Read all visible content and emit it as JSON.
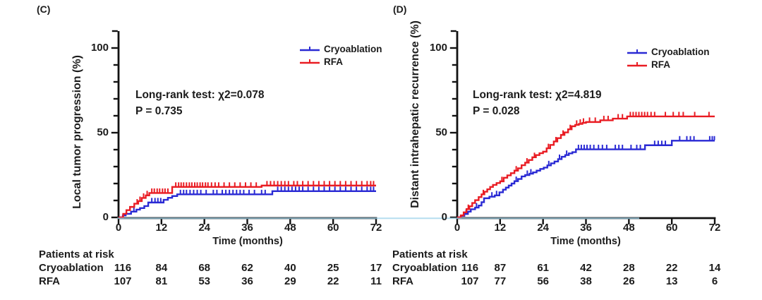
{
  "colors": {
    "cryoablation": "#2a2ad4",
    "rfa": "#e91c23",
    "axis": "#111111",
    "text": "#1b1b1b",
    "overlay_line": "#9ed3e9"
  },
  "chart_data": [
    {
      "type": "line",
      "subtype": "kaplan-meier-step",
      "panel_label": "(C)",
      "ylabel": "Local tumor progression (%)",
      "xlabel": "Time (months)",
      "xlim": [
        0,
        72
      ],
      "ylim": [
        0,
        110
      ],
      "xticks": [
        0,
        12,
        24,
        36,
        48,
        60,
        72
      ],
      "yticks_major": [
        0,
        50,
        100
      ],
      "yticks_minor_step": 10,
      "grid": false,
      "legend_position": "top-right",
      "stats_line1": "Long-rank test:  χ2=0.078",
      "stats_line2": "P = 0.735",
      "series": [
        {
          "name": "Cryoablation",
          "color": "#2a2ad4",
          "steps": [
            [
              0,
              0
            ],
            [
              1.2,
              1.2
            ],
            [
              2,
              2.1
            ],
            [
              3.5,
              3.4
            ],
            [
              5,
              4.6
            ],
            [
              6,
              5.5
            ],
            [
              7.2,
              6.7
            ],
            [
              8.3,
              8.8
            ],
            [
              12.6,
              10.4
            ],
            [
              13.8,
              11.6
            ],
            [
              15,
              12.6
            ],
            [
              16.4,
              13.6
            ],
            [
              43,
              15.5
            ]
          ],
          "censor_times": [
            4.3,
            9.3,
            10.2,
            11,
            11.8,
            17.3,
            18.2,
            19,
            20,
            21,
            22,
            23,
            24.5,
            26.5,
            27.5,
            29,
            30,
            31,
            32,
            33,
            34,
            35,
            36.5,
            38,
            40,
            41,
            44.5,
            45.5,
            46.5,
            47.5,
            48.5,
            49.5,
            50.5,
            51.5,
            53,
            54.5,
            56,
            57.5,
            59,
            60.5,
            62,
            63.5,
            65,
            66.5,
            68,
            69.5,
            70.5,
            71.3
          ],
          "end_time": 72
        },
        {
          "name": "RFA",
          "color": "#e91c23",
          "steps": [
            [
              0,
              0
            ],
            [
              1.3,
              2.1
            ],
            [
              2.2,
              4.3
            ],
            [
              3.2,
              6.2
            ],
            [
              4.4,
              8.1
            ],
            [
              5.5,
              9.6
            ],
            [
              6.5,
              11.5
            ],
            [
              7.6,
              13
            ],
            [
              8.6,
              14.4
            ],
            [
              15,
              18
            ],
            [
              40,
              18.8
            ]
          ],
          "censor_times": [
            5.2,
            6,
            7,
            8,
            9.3,
            10,
            10.8,
            11.5,
            12.3,
            13,
            13.8,
            16,
            16.8,
            17.5,
            18.2,
            19,
            19.8,
            20.5,
            21.3,
            22,
            22.8,
            23.5,
            24.3,
            25,
            26,
            27,
            28,
            29.5,
            31,
            32.5,
            34,
            35.5,
            37,
            38.5,
            41.5,
            42.5,
            43.5,
            44.5,
            45.5,
            46.5,
            47.5,
            49,
            50,
            51.5,
            53,
            54.5,
            56,
            57.5,
            59,
            60.5,
            62,
            63.5,
            65,
            66.5,
            68,
            69.5,
            70.5,
            71.3
          ],
          "end_time": 72
        }
      ],
      "at_risk": {
        "title": "Patients at risk",
        "times": [
          0,
          12,
          24,
          36,
          48,
          60,
          72
        ],
        "rows": [
          {
            "name": "Cryoablation",
            "counts": [
              116,
              84,
              68,
              62,
              40,
              25,
              17
            ]
          },
          {
            "name": "RFA",
            "counts": [
              107,
              81,
              53,
              36,
              29,
              22,
              11
            ]
          }
        ]
      }
    },
    {
      "type": "line",
      "subtype": "kaplan-meier-step",
      "panel_label": "(D)",
      "ylabel": "Distant intrahepatic recurrence (%)",
      "xlabel": "Time (months)",
      "xlim": [
        0,
        72
      ],
      "ylim": [
        0,
        110
      ],
      "xticks": [
        0,
        12,
        24,
        36,
        48,
        60,
        72
      ],
      "yticks_major": [
        0,
        50,
        100
      ],
      "yticks_minor_step": 10,
      "grid": false,
      "legend_position": "top-right",
      "stats_line1": "Long-rank test:  χ2=4.819",
      "stats_line2": "P = 0.028",
      "series": [
        {
          "name": "Cryoablation",
          "color": "#2a2ad4",
          "steps": [
            [
              0,
              0
            ],
            [
              1,
              0.9
            ],
            [
              2,
              2
            ],
            [
              3,
              3.4
            ],
            [
              3.8,
              4.8
            ],
            [
              5,
              5.8
            ],
            [
              6,
              7
            ],
            [
              6.8,
              9
            ],
            [
              7.5,
              11.3
            ],
            [
              9,
              12.2
            ],
            [
              10.5,
              13
            ],
            [
              11.8,
              14.8
            ],
            [
              12.8,
              16.4
            ],
            [
              13.6,
              17.6
            ],
            [
              14.4,
              18.8
            ],
            [
              15.2,
              20
            ],
            [
              16,
              21.4
            ],
            [
              17,
              22.7
            ],
            [
              18,
              24.2
            ],
            [
              19,
              25
            ],
            [
              20.2,
              25.8
            ],
            [
              21.2,
              26.6
            ],
            [
              22.2,
              27.6
            ],
            [
              23.2,
              28.6
            ],
            [
              24.2,
              29.4
            ],
            [
              25.2,
              30.7
            ],
            [
              26.2,
              31.9
            ],
            [
              27.2,
              33
            ],
            [
              28.2,
              34.4
            ],
            [
              29.2,
              35.8
            ],
            [
              30.2,
              36.8
            ],
            [
              31.2,
              37.8
            ],
            [
              32.2,
              38.5
            ],
            [
              33.2,
              40.2
            ],
            [
              52.5,
              42.6
            ],
            [
              60,
              45.3
            ]
          ],
          "censor_times": [
            2.5,
            5.4,
            9.7,
            11,
            16.5,
            19.6,
            20.6,
            25.6,
            28.6,
            30.6,
            33.9,
            34.7,
            35.5,
            36.3,
            37.2,
            38.2,
            39.5,
            40.6,
            41.8,
            44.2,
            45.2,
            46.2,
            48.6,
            50.2,
            51.2,
            55.2,
            56.2,
            57.2,
            58.2,
            62.2,
            64.2,
            65.2,
            66.2,
            70.6,
            71.3,
            71.9
          ],
          "end_time": 72
        },
        {
          "name": "RFA",
          "color": "#e91c23",
          "steps": [
            [
              0,
              0
            ],
            [
              1,
              1.2
            ],
            [
              1.8,
              3
            ],
            [
              2.6,
              4.9
            ],
            [
              3.4,
              6.6
            ],
            [
              4.2,
              8.5
            ],
            [
              5,
              10.2
            ],
            [
              6,
              12
            ],
            [
              6.8,
              13.6
            ],
            [
              7.6,
              15.2
            ],
            [
              8.4,
              16.6
            ],
            [
              9.2,
              18
            ],
            [
              10,
              19.2
            ],
            [
              11,
              20.3
            ],
            [
              12,
              21.3
            ],
            [
              13,
              23.4
            ],
            [
              14,
              24.8
            ],
            [
              15,
              26.1
            ],
            [
              16,
              27.6
            ],
            [
              17,
              29
            ],
            [
              18,
              30.8
            ],
            [
              19,
              32.3
            ],
            [
              20,
              33.9
            ],
            [
              21,
              35.5
            ],
            [
              22,
              36.8
            ],
            [
              23,
              37.9
            ],
            [
              24,
              38.8
            ],
            [
              25,
              40.8
            ],
            [
              26,
              42.8
            ],
            [
              27,
              44.8
            ],
            [
              28,
              46.8
            ],
            [
              29,
              48.7
            ],
            [
              30,
              50.2
            ],
            [
              31,
              52
            ],
            [
              32,
              53.8
            ],
            [
              33,
              54.6
            ],
            [
              34,
              55.2
            ],
            [
              35,
              55.8
            ],
            [
              36,
              56.3
            ],
            [
              40,
              57.3
            ],
            [
              43.5,
              58.3
            ],
            [
              47.5,
              59.6
            ]
          ],
          "censor_times": [
            3.1,
            7.3,
            12.5,
            16.5,
            19.5,
            21.6,
            25.5,
            27.6,
            29.6,
            31.6,
            33.4,
            34.4,
            35.3,
            37,
            38.6,
            41,
            42.2,
            45,
            46.2,
            48.4,
            49.2,
            50,
            50.8,
            51.6,
            52.4,
            53.2,
            54.2,
            55.2,
            58.2,
            60.4,
            62,
            63.2,
            66.4,
            70.4
          ],
          "end_time": 72
        }
      ],
      "at_risk": {
        "title": "Patients at risk",
        "times": [
          0,
          12,
          24,
          36,
          48,
          60,
          72
        ],
        "rows": [
          {
            "name": "Cryoablation",
            "counts": [
              116,
              87,
              61,
              42,
              28,
              22,
              14
            ]
          },
          {
            "name": "RFA",
            "counts": [
              107,
              77,
              56,
              38,
              26,
              13,
              6
            ]
          }
        ]
      }
    }
  ]
}
